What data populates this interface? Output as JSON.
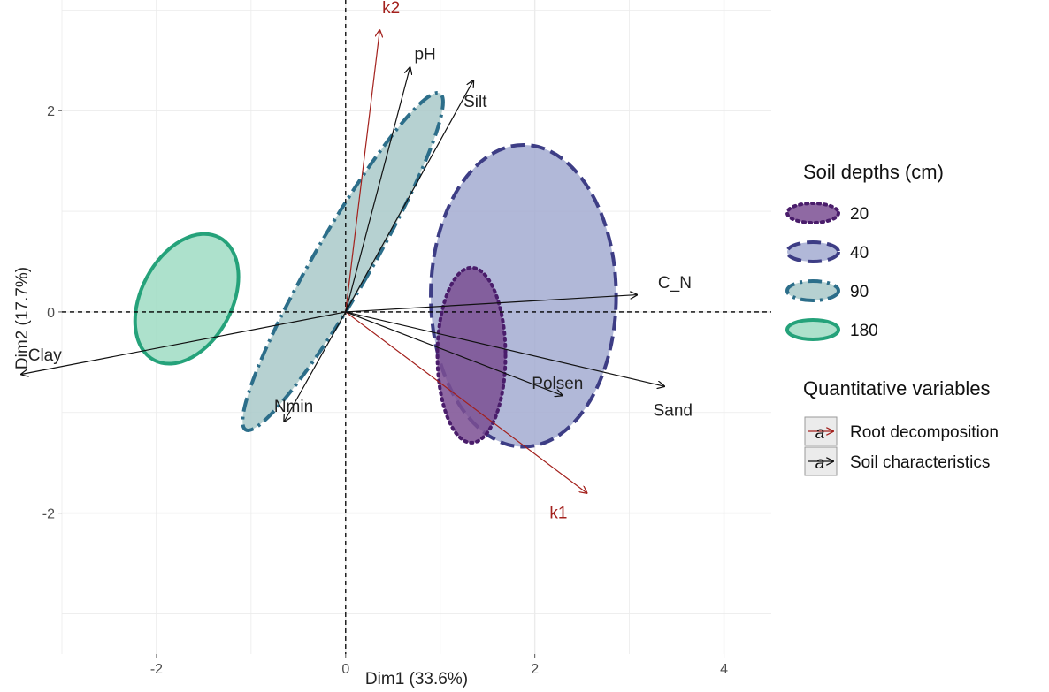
{
  "chart_data": {
    "type": "scatter",
    "subtype": "pca-biplot",
    "xlabel": "Dim1 (33.6%)",
    "ylabel": "Dim2 (17.7%)",
    "xlim": [
      -3,
      4.5
    ],
    "ylim": [
      -3.4,
      3.1
    ],
    "x_ticks": [
      -2,
      0,
      2,
      4
    ],
    "x_tick_labels": [
      "-2",
      "0",
      "2",
      "4"
    ],
    "y_ticks": [
      -2,
      0,
      2
    ],
    "y_tick_labels": [
      "-2",
      "0",
      "2"
    ],
    "grid": true,
    "reference_lines": {
      "x": 0,
      "y": 0,
      "style": "dashed"
    },
    "ellipses": [
      {
        "name": "20",
        "cx": 1.33,
        "cy": -0.43,
        "rx": 0.36,
        "ry": 0.87,
        "angle_deg": 0,
        "fill": "#7b4f93",
        "stroke": "#4a1d6b",
        "dash": "dotted"
      },
      {
        "name": "40",
        "cx": 1.88,
        "cy": 0.16,
        "rx": 0.98,
        "ry": 1.5,
        "angle_deg": 0,
        "fill": "#a3acd1",
        "stroke": "#3d3d85",
        "dash": "dashed"
      },
      {
        "name": "90",
        "cx": -0.03,
        "cy": 0.5,
        "rx": 0.3,
        "ry": 1.93,
        "angle_deg": 30,
        "fill": "#a9c9c9",
        "stroke": "#2c6e8a",
        "dash": "dashdot"
      },
      {
        "name": "180",
        "cx": -1.68,
        "cy": 0.13,
        "rx": 0.48,
        "ry": 0.69,
        "angle_deg": 28,
        "fill": "#9fdcc3",
        "stroke": "#25a27a",
        "dash": "solid"
      }
    ],
    "arrows": [
      {
        "name": "k2",
        "x": 0.36,
        "y": 2.8,
        "group": "Root decomposition"
      },
      {
        "name": "k1",
        "x": 2.55,
        "y": -1.8,
        "group": "Root decomposition"
      },
      {
        "name": "pH",
        "x": 0.68,
        "y": 2.43,
        "group": "Soil characteristics"
      },
      {
        "name": "Silt",
        "x": 1.35,
        "y": 2.3,
        "group": "Soil characteristics"
      },
      {
        "name": "C_N",
        "x": 3.08,
        "y": 0.17,
        "group": "Soil characteristics"
      },
      {
        "name": "Polsen",
        "x": 2.29,
        "y": -0.83,
        "group": "Soil characteristics"
      },
      {
        "name": "Sand",
        "x": 3.37,
        "y": -0.74,
        "group": "Soil characteristics"
      },
      {
        "name": "Clay",
        "x": -3.43,
        "y": -0.62,
        "group": "Soil characteristics"
      },
      {
        "name": "Nmin",
        "x": -0.65,
        "y": -1.09,
        "group": "Soil characteristics"
      }
    ],
    "label_offsets": {
      "k2": [
        0.12,
        0.22
      ],
      "k1": [
        -0.3,
        -0.2
      ],
      "pH": [
        0.16,
        0.13
      ],
      "Silt": [
        0.02,
        -0.21
      ],
      "C_N": [
        0.4,
        0.12
      ],
      "Polsen": [
        -0.05,
        0.12
      ],
      "Sand": [
        0.09,
        -0.24
      ],
      "Clay": [
        0.25,
        0.19
      ],
      "Nmin": [
        0.1,
        0.15
      ]
    },
    "legend": {
      "placement": "right",
      "fill_title": "Soil depths (cm)",
      "fill_items": [
        "20",
        "40",
        "90",
        "180"
      ],
      "color_title": "Quantitative variables",
      "color_items": [
        "Root decomposition",
        "Soil characteristics"
      ],
      "key_glyph": "a"
    }
  },
  "colors": {
    "root_decomposition": "#a3201c",
    "soil_characteristics": "#111111",
    "grid": "#ebebeb",
    "reference_line": "#000000"
  }
}
